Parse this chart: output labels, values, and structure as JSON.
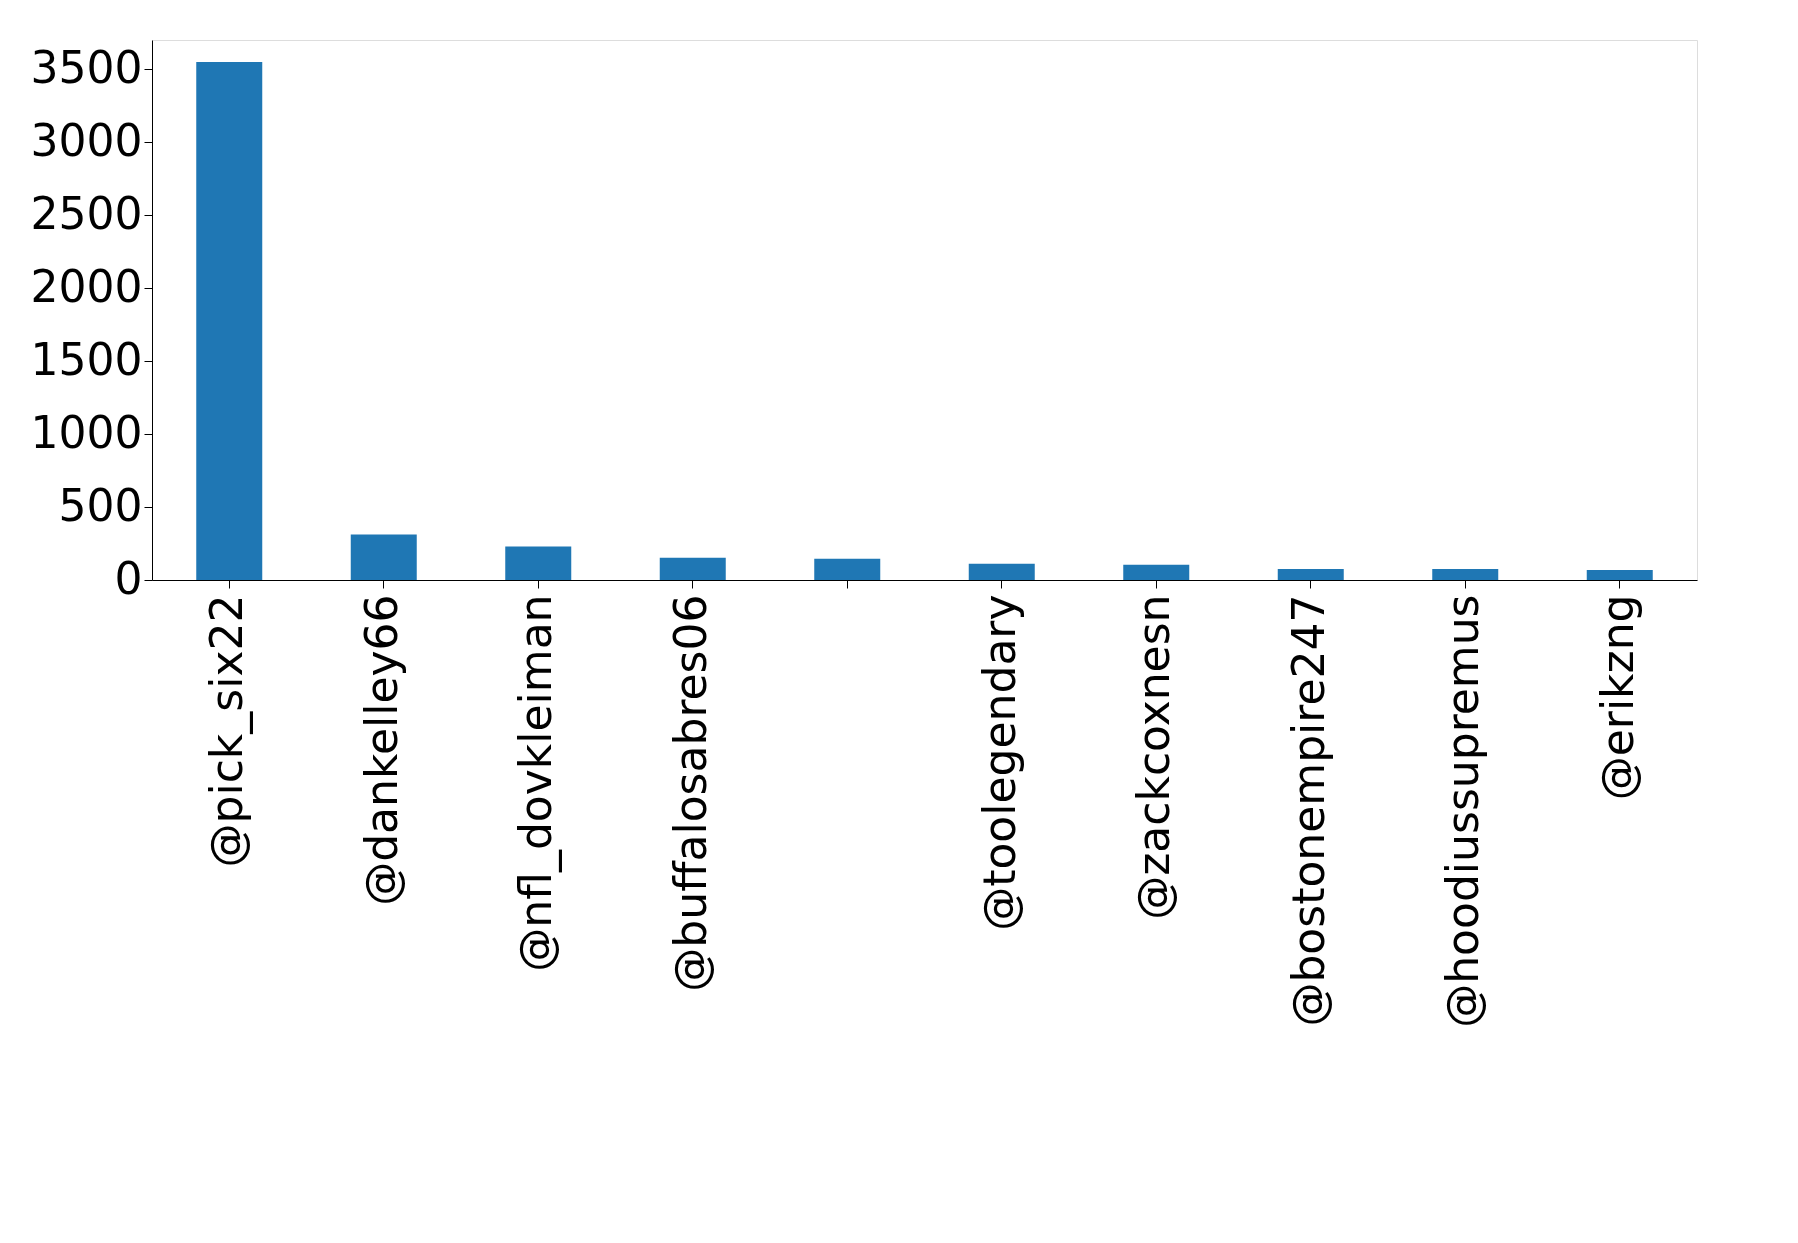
{
  "chart_data": {
    "type": "bar",
    "categories": [
      "@pick_six22",
      "@dankelley66",
      "@nfl_dovkleiman",
      "@buffalosabres06",
      null,
      "@toolegendary",
      "@zackcoxnesn",
      "@bostonempire247",
      "@hoodiussupremus",
      "@erikzng"
    ],
    "values": [
      3550,
      312,
      229,
      153,
      146,
      111,
      104,
      76,
      76,
      69
    ],
    "color": "#1f77b4",
    "ylim": [
      0,
      3700
    ],
    "yticks": [
      0,
      500,
      1000,
      1500,
      2000,
      2500,
      3000,
      3500
    ],
    "grid": false
  }
}
